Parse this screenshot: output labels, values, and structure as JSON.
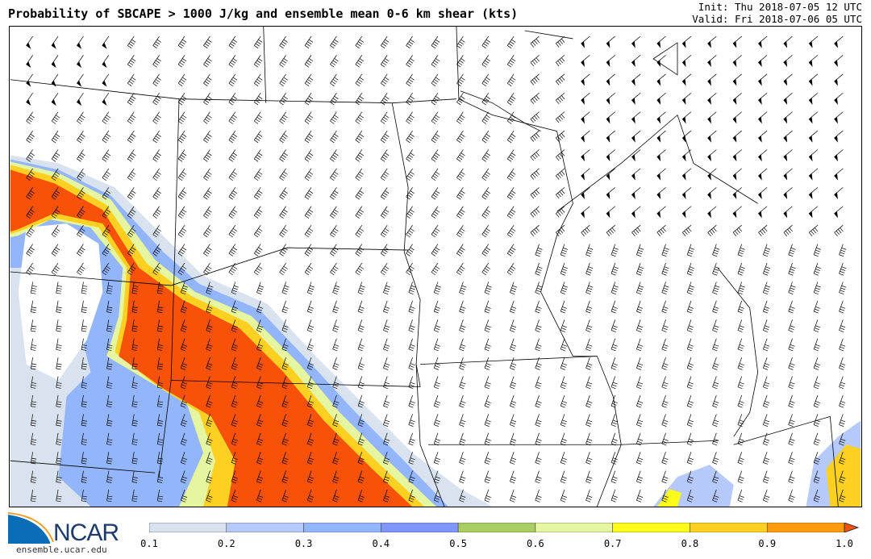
{
  "header": {
    "title": "Probability of SBCAPE > 1000 J/kg and ensemble mean 0-6 km shear (kts)",
    "init": "Init: Thu 2018-07-05 12 UTC",
    "valid": "Valid: Fri 2018-07-06 05 UTC"
  },
  "logo": {
    "text": "NCAR",
    "url": "ensemble.ucar.edu"
  },
  "colorbar": {
    "ticks": [
      "0.1",
      "0.2",
      "0.3",
      "0.4",
      "0.5",
      "0.6",
      "0.7",
      "0.8",
      "0.9",
      "1.0"
    ],
    "colors": [
      "#d8e3ef",
      "#b5c9fb",
      "#93b5fb",
      "#8096f9",
      "#a9cd63",
      "#e5f5a0",
      "#fdfb1a",
      "#fdd022",
      "#fd9b0c"
    ],
    "extend_color": "#f7510a"
  }
}
